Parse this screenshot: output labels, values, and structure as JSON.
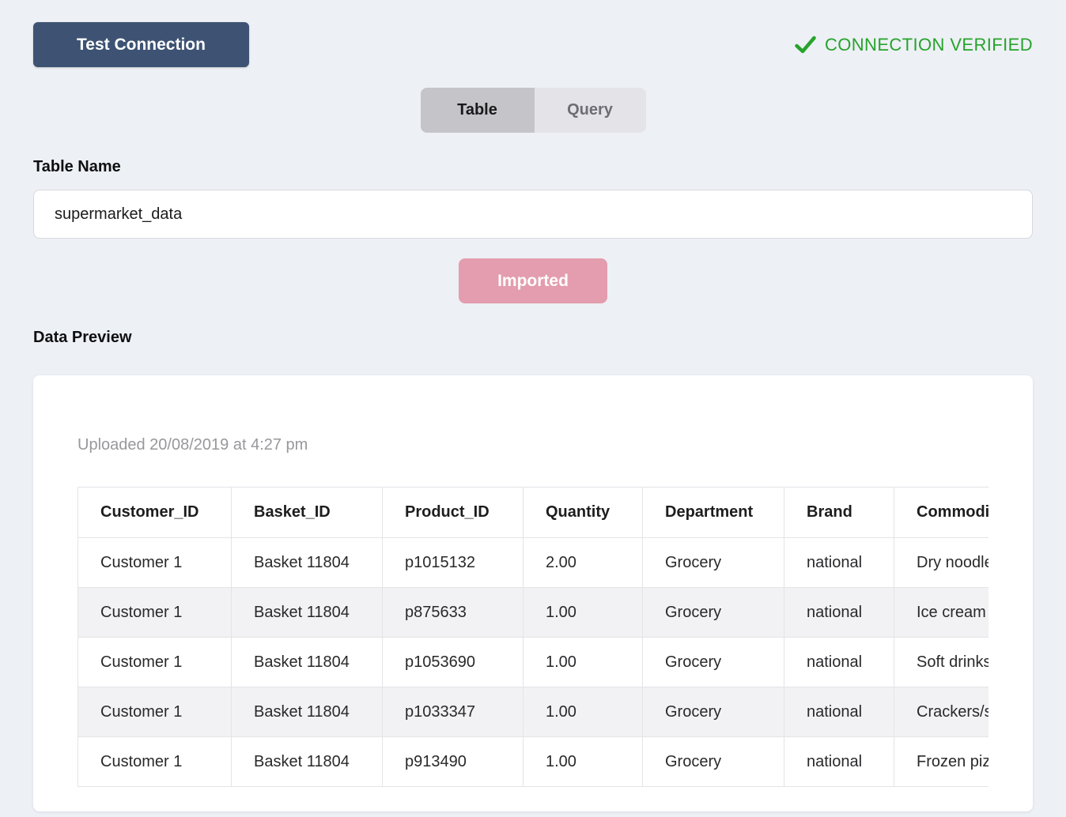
{
  "connection": {
    "test_button_label": "Test Connection",
    "status_label": "CONNECTION VERIFIED"
  },
  "tabs": [
    {
      "label": "Table",
      "active": true
    },
    {
      "label": "Query",
      "active": false
    }
  ],
  "table_name": {
    "label": "Table Name",
    "value": "supermarket_data"
  },
  "import": {
    "button_label": "Imported"
  },
  "preview": {
    "label": "Data Preview",
    "uploaded_text": "Uploaded 20/08/2019 at 4:27 pm",
    "columns": [
      "Customer_ID",
      "Basket_ID",
      "Product_ID",
      "Quantity",
      "Department",
      "Brand",
      "Commodity"
    ],
    "rows": [
      [
        "Customer 1",
        "Basket 11804",
        "p1015132",
        "2.00",
        "Grocery",
        "national",
        "Dry noodles"
      ],
      [
        "Customer 1",
        "Basket 11804",
        "p875633",
        "1.00",
        "Grocery",
        "national",
        "Ice cream"
      ],
      [
        "Customer 1",
        "Basket 11804",
        "p1053690",
        "1.00",
        "Grocery",
        "national",
        "Soft drinks"
      ],
      [
        "Customer 1",
        "Basket 11804",
        "p1033347",
        "1.00",
        "Grocery",
        "national",
        "Crackers/s"
      ],
      [
        "Customer 1",
        "Basket 11804",
        "p913490",
        "1.00",
        "Grocery",
        "national",
        "Frozen pizza"
      ]
    ]
  },
  "colors": {
    "page_background": "#edf0f5",
    "primary_button": "#3e5373",
    "status_green": "#26a32b",
    "imported_pink": "#e49dae",
    "tab_active_bg": "#c5c4c9",
    "tab_inactive_bg": "#e4e3e7",
    "row_stripe": "#f2f2f4"
  }
}
